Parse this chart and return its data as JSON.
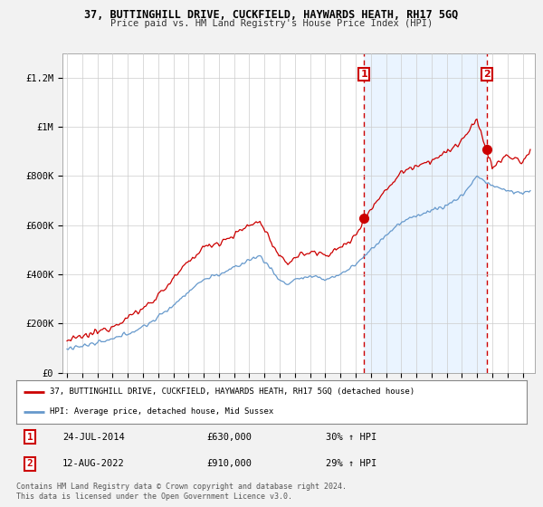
{
  "title": "37, BUTTINGHILL DRIVE, CUCKFIELD, HAYWARDS HEATH, RH17 5GQ",
  "subtitle": "Price paid vs. HM Land Registry's House Price Index (HPI)",
  "ylabel_ticks": [
    "£0",
    "£200K",
    "£400K",
    "£600K",
    "£800K",
    "£1M",
    "£1.2M"
  ],
  "ytick_values": [
    0,
    200000,
    400000,
    600000,
    800000,
    1000000,
    1200000
  ],
  "ylim": [
    0,
    1300000
  ],
  "xlim_start": 1994.7,
  "xlim_end": 2025.8,
  "red_color": "#cc0000",
  "blue_color": "#6699cc",
  "blue_fill_color": "#ddeeff",
  "marker1_date": 2014.56,
  "marker1_price": 630000,
  "marker1_label": "1",
  "marker2_date": 2022.62,
  "marker2_price": 910000,
  "marker2_label": "2",
  "legend_red": "37, BUTTINGHILL DRIVE, CUCKFIELD, HAYWARDS HEATH, RH17 5GQ (detached house)",
  "legend_blue": "HPI: Average price, detached house, Mid Sussex",
  "annotation1_date": "24-JUL-2014",
  "annotation1_price": "£630,000",
  "annotation1_hpi": "30% ↑ HPI",
  "annotation2_date": "12-AUG-2022",
  "annotation2_price": "£910,000",
  "annotation2_hpi": "29% ↑ HPI",
  "footer": "Contains HM Land Registry data © Crown copyright and database right 2024.\nThis data is licensed under the Open Government Licence v3.0.",
  "background_color": "#f2f2f2",
  "plot_bg_color": "#ffffff",
  "grid_color": "#cccccc"
}
